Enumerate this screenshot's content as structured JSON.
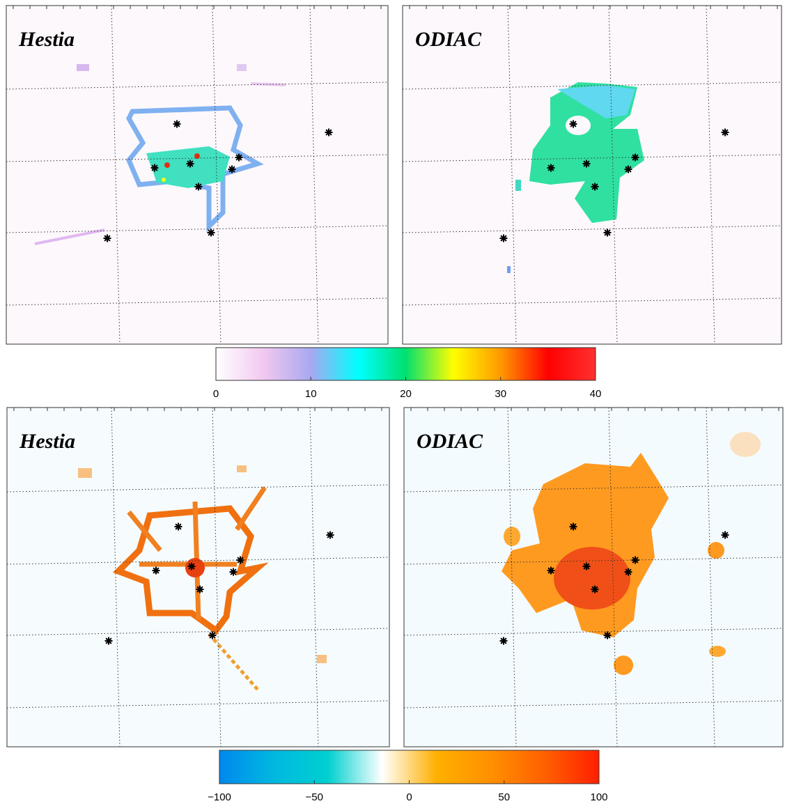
{
  "panels": [
    {
      "title": "Hestia"
    },
    {
      "title": "ODIAC"
    },
    {
      "title": "Hestia"
    },
    {
      "title": "ODIAC"
    }
  ],
  "colorbars": [
    {
      "lim": [
        0,
        40
      ],
      "ticks": [
        0,
        10,
        20,
        30,
        40
      ],
      "colors": [
        "#ffffff",
        "#f2c8f0",
        "#a8a8f0",
        "#00ffff",
        "#00e070",
        "#ffff00",
        "#ff9900",
        "#ff0000",
        "#ff3030"
      ]
    },
    {
      "lim": [
        -100,
        100
      ],
      "ticks": [
        {
          "value": -100,
          "label": "−100"
        },
        {
          "value": -50,
          "label": "−50"
        },
        0,
        50,
        100
      ],
      "colors": [
        "#0088ee",
        "#00b8e0",
        "#00d0d0",
        "#ffffff",
        "#ffb000",
        "#ff9000",
        "#ff6000",
        "#ff2000"
      ]
    }
  ]
}
